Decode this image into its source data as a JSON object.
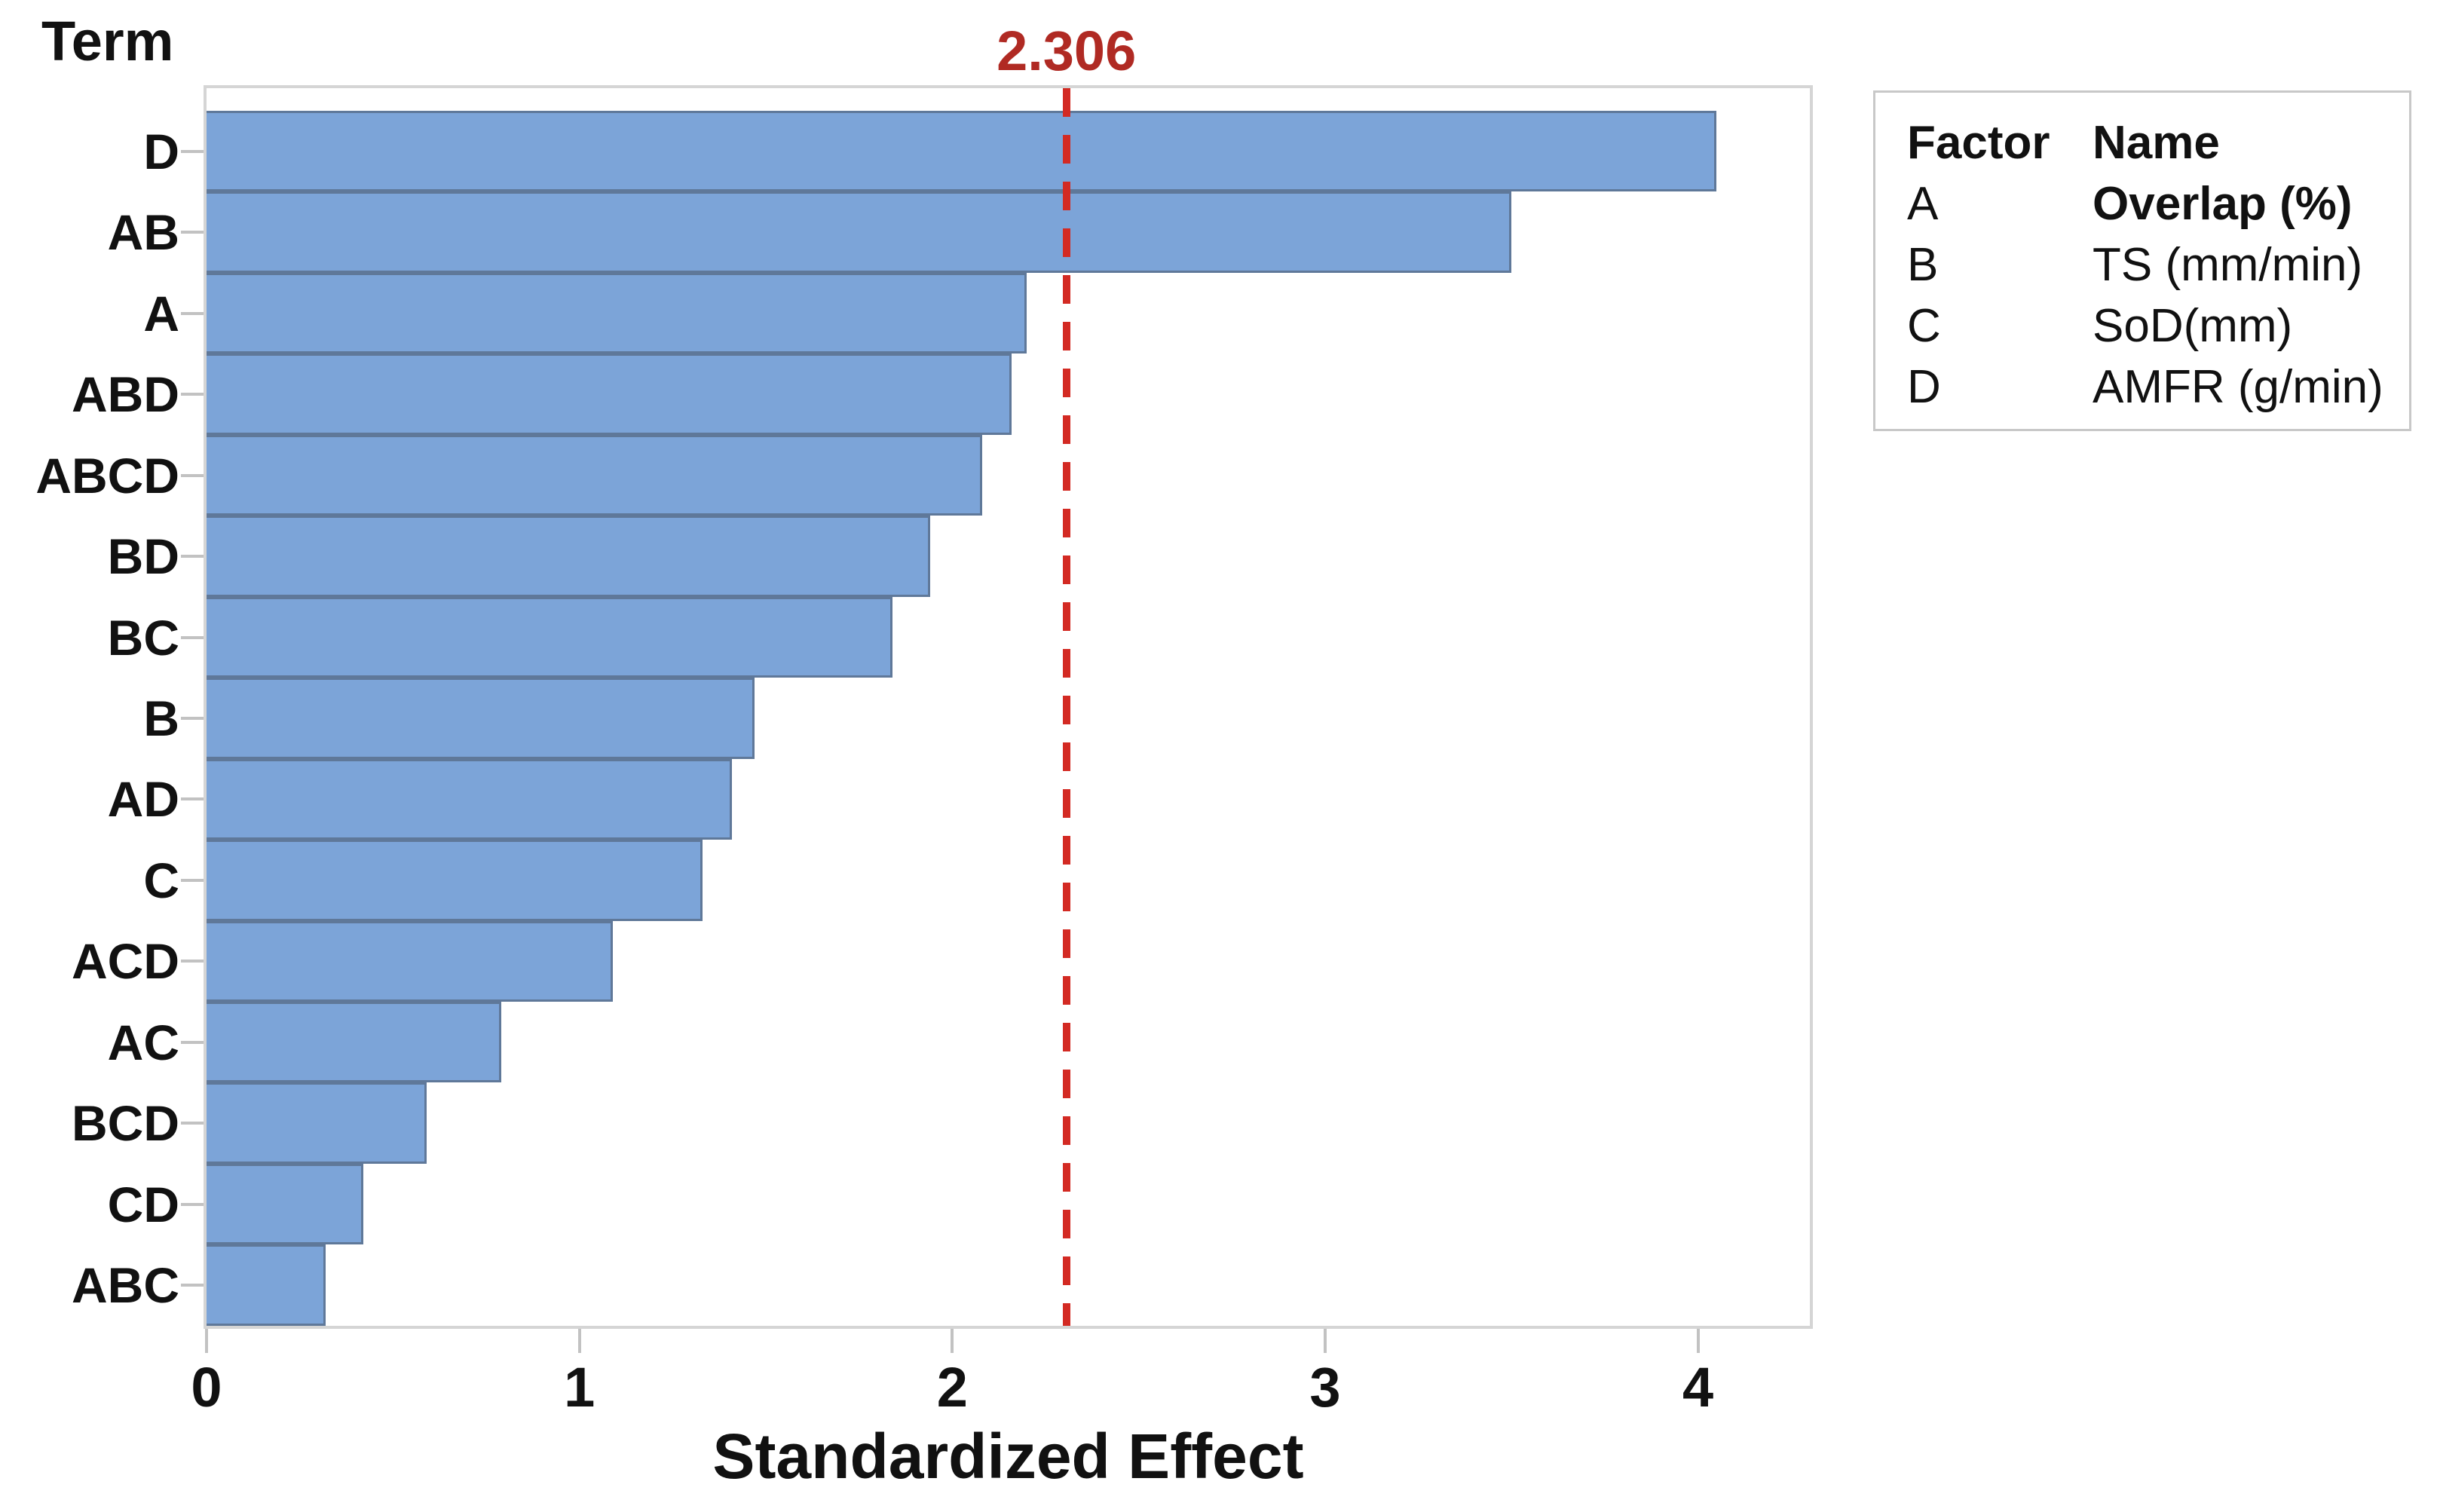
{
  "chart_data": {
    "type": "bar",
    "orientation": "horizontal",
    "title": "",
    "xlabel": "Standardized Effect",
    "ylabel": "Term",
    "categories": [
      "D",
      "AB",
      "A",
      "ABD",
      "ABCD",
      "BD",
      "BC",
      "B",
      "AD",
      "C",
      "ACD",
      "AC",
      "BCD",
      "CD",
      "ABC"
    ],
    "values": [
      4.05,
      3.5,
      2.2,
      2.16,
      2.08,
      1.94,
      1.84,
      1.47,
      1.41,
      1.33,
      1.09,
      0.79,
      0.59,
      0.42,
      0.32
    ],
    "x_ticks": [
      "0",
      "1",
      "2",
      "3",
      "4"
    ],
    "xlim": [
      0,
      4.3
    ],
    "grid": false,
    "reference_line": {
      "value": 2.306,
      "label": "2.306"
    },
    "colors": {
      "bar_fill": "#7ca4d8",
      "bar_border": "#5f7899",
      "reference_line": "#d32a23",
      "reference_label": "#b02a23",
      "axis": "#d5d5d5",
      "tick": "#c2c2c2",
      "legend_border": "#c8c8c8"
    }
  },
  "legend": {
    "header": {
      "factor": "Factor",
      "name": "Name"
    },
    "rows": [
      {
        "factor": "A",
        "name": "Overlap (%)",
        "bold": true
      },
      {
        "factor": "B",
        "name": "TS (mm/min)",
        "bold": false
      },
      {
        "factor": "C",
        "name": "SoD(mm)",
        "bold": false
      },
      {
        "factor": "D",
        "name": "AMFR (g/min)",
        "bold": false
      }
    ]
  }
}
